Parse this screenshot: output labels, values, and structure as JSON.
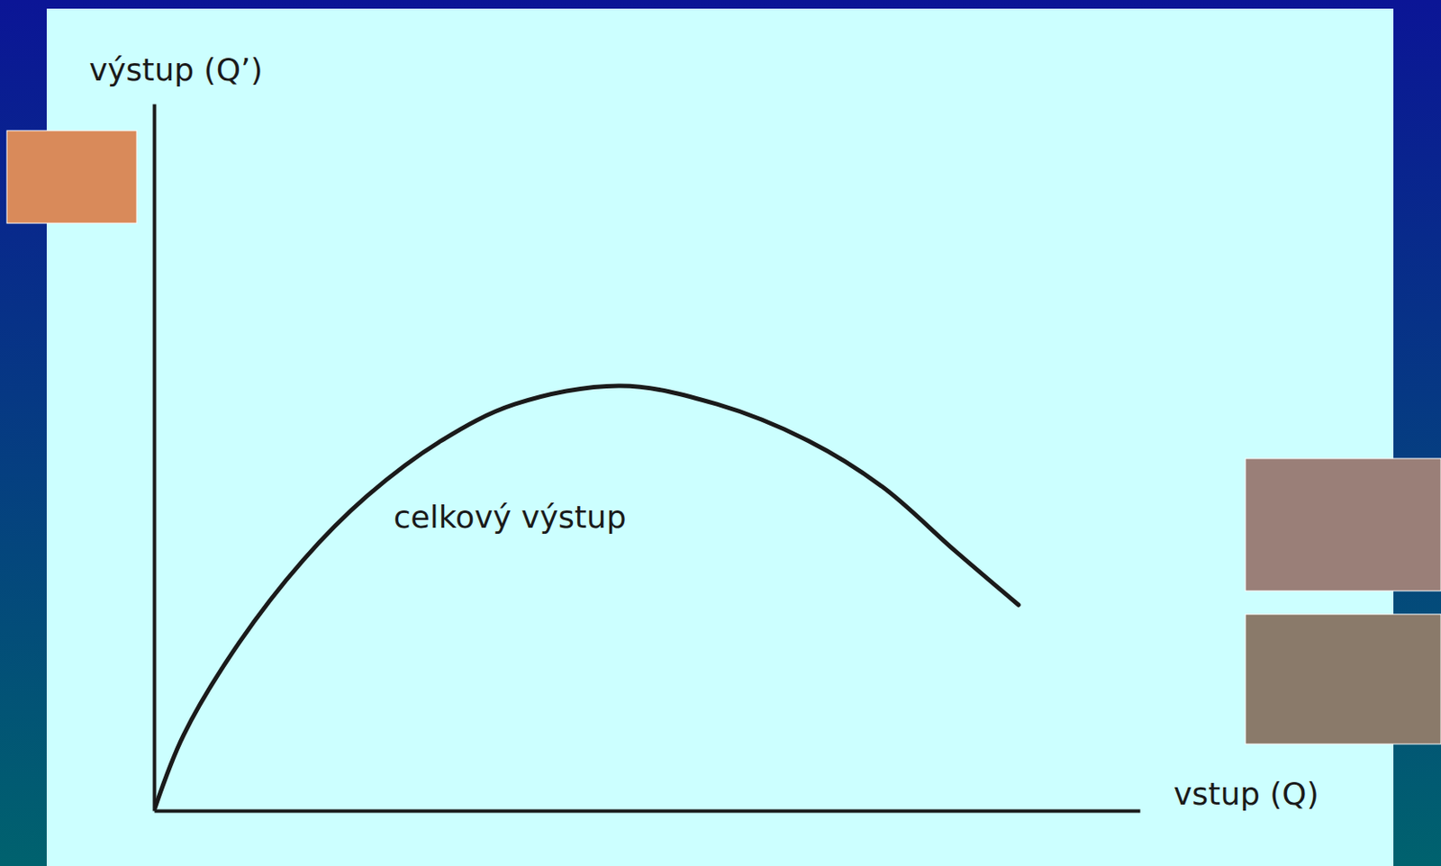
{
  "chart_data": {
    "type": "line",
    "x_label": "vstup (Q)",
    "y_label": "výstup (Q’)",
    "annotations": [
      {
        "text": "celkový výstup",
        "x": 24.3,
        "y": 40
      }
    ],
    "x": [
      0,
      3,
      8.6,
      15.1,
      21.6,
      29.1,
      36.6,
      47.3,
      57.1,
      66.4,
      73.9,
      81.3,
      87.7
    ],
    "values": [
      0,
      10.7,
      23.7,
      35.4,
      44.5,
      52.3,
      57.5,
      60.1,
      57.5,
      52.3,
      45.8,
      36.7,
      29.1
    ],
    "xlim": [
      0,
      100
    ],
    "ylim": [
      0,
      100
    ],
    "tick_labels": false,
    "grid": false,
    "color": "#1a1a1a"
  }
}
